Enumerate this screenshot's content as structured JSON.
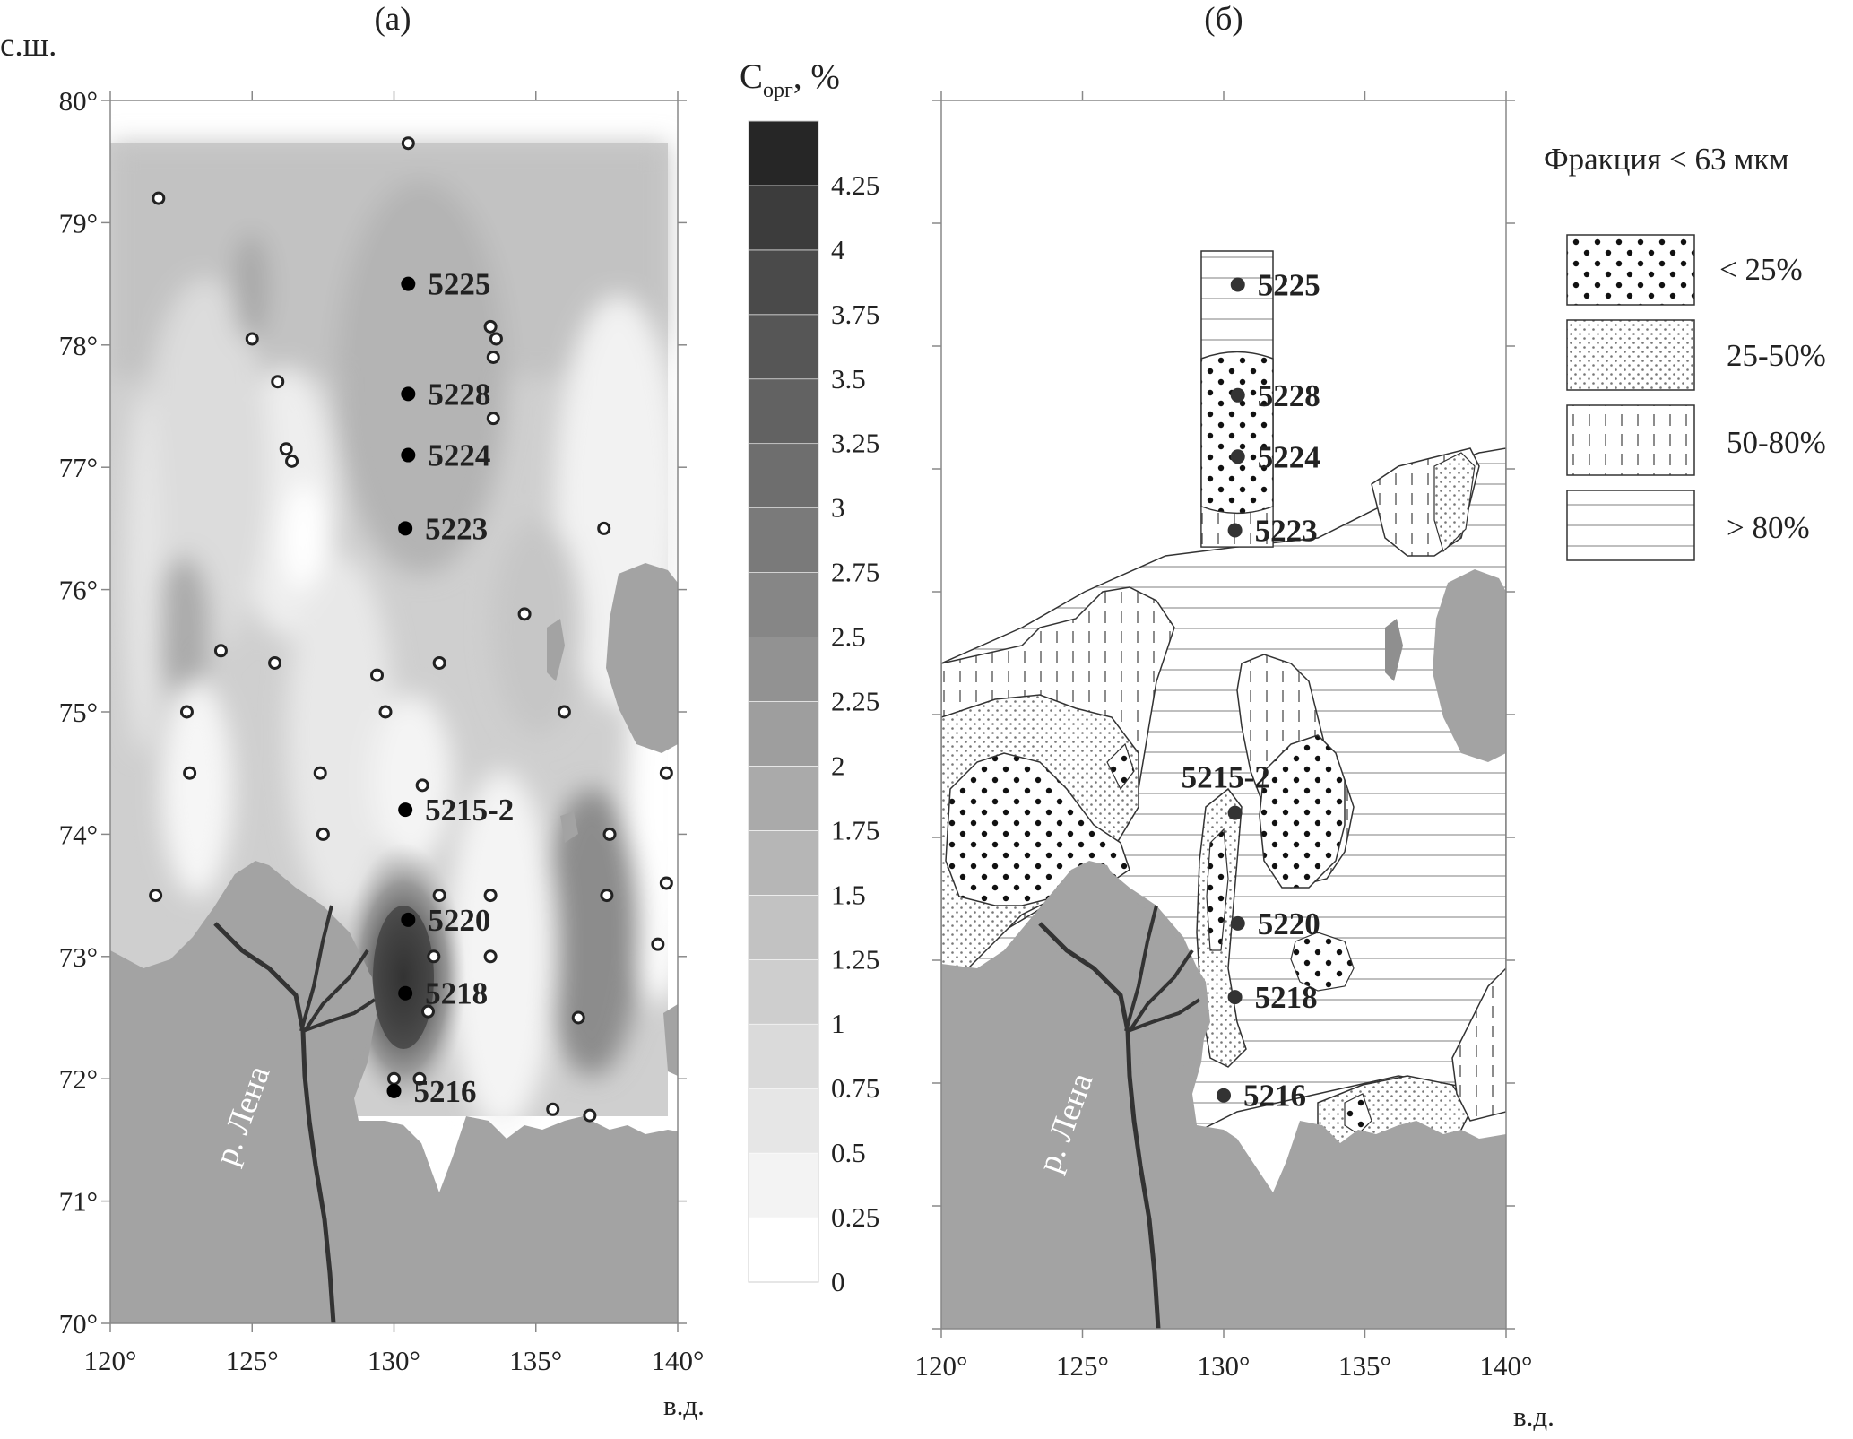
{
  "panels": [
    {
      "label": "(а)"
    },
    {
      "label": "(б)"
    }
  ],
  "axis": {
    "lat_title": "с.ш.",
    "lon_title": "в.д.",
    "lat_ticks": [
      "70°",
      "71°",
      "72°",
      "73°",
      "74°",
      "75°",
      "76°",
      "77°",
      "78°",
      "79°",
      "80°"
    ],
    "lon_ticks": [
      "120°",
      "125°",
      "130°",
      "135°",
      "140°"
    ]
  },
  "river_label": "р. Лена",
  "colorbar": {
    "title_main": "С",
    "title_sub": "орг",
    "title_unit": ", %",
    "levels": [
      "0",
      "0.25",
      "0.5",
      "0.75",
      "1",
      "1.25",
      "1.5",
      "1.75",
      "2",
      "2.25",
      "2.5",
      "2.75",
      "3",
      "3.25",
      "3.5",
      "3.75",
      "4",
      "4.25"
    ],
    "colors": [
      "#ffffff",
      "#f3f3f3",
      "#e6e6e6",
      "#dadada",
      "#cecece",
      "#c2c2c2",
      "#b6b6b6",
      "#aaaaaa",
      "#9e9e9e",
      "#929292",
      "#868686",
      "#7a7a7a",
      "#6e6e6e",
      "#626262",
      "#565656",
      "#4a4a4a",
      "#3c3c3c",
      "#262626"
    ]
  },
  "legend": {
    "title": "Фракция < 63 мкм",
    "items": [
      {
        "label": "< 25%"
      },
      {
        "label": "25-50%"
      },
      {
        "label": "50-80%"
      },
      {
        "label": "> 80%"
      }
    ]
  },
  "stations": [
    {
      "id": "5225",
      "lon": 130.5,
      "lat": 78.5
    },
    {
      "id": "5228",
      "lon": 130.5,
      "lat": 77.6
    },
    {
      "id": "5224",
      "lon": 130.5,
      "lat": 77.1
    },
    {
      "id": "5223",
      "lon": 130.4,
      "lat": 76.5
    },
    {
      "id": "5215-2",
      "lon": 130.4,
      "lat": 74.2
    },
    {
      "id": "5220",
      "lon": 130.5,
      "lat": 73.3
    },
    {
      "id": "5218",
      "lon": 130.4,
      "lat": 72.7
    },
    {
      "id": "5216",
      "lon": 130.0,
      "lat": 71.9
    }
  ],
  "open_points": [
    {
      "lon": 130.5,
      "lat": 79.65
    },
    {
      "lon": 121.7,
      "lat": 79.2
    },
    {
      "lon": 125.0,
      "lat": 78.05
    },
    {
      "lon": 133.4,
      "lat": 78.15
    },
    {
      "lon": 133.6,
      "lat": 78.05
    },
    {
      "lon": 133.5,
      "lat": 77.9
    },
    {
      "lon": 125.9,
      "lat": 77.7
    },
    {
      "lon": 133.5,
      "lat": 77.4
    },
    {
      "lon": 126.2,
      "lat": 77.15
    },
    {
      "lon": 126.4,
      "lat": 77.05
    },
    {
      "lon": 137.4,
      "lat": 76.5
    },
    {
      "lon": 134.6,
      "lat": 75.8
    },
    {
      "lon": 123.9,
      "lat": 75.5
    },
    {
      "lon": 125.8,
      "lat": 75.4
    },
    {
      "lon": 131.6,
      "lat": 75.4
    },
    {
      "lon": 129.4,
      "lat": 75.3
    },
    {
      "lon": 122.7,
      "lat": 75.0
    },
    {
      "lon": 129.7,
      "lat": 75.0
    },
    {
      "lon": 136.0,
      "lat": 75.0
    },
    {
      "lon": 122.8,
      "lat": 74.5
    },
    {
      "lon": 127.4,
      "lat": 74.5
    },
    {
      "lon": 139.6,
      "lat": 74.5
    },
    {
      "lon": 131.0,
      "lat": 74.4
    },
    {
      "lon": 127.5,
      "lat": 74.0
    },
    {
      "lon": 137.6,
      "lat": 74.0
    },
    {
      "lon": 121.6,
      "lat": 73.5
    },
    {
      "lon": 131.6,
      "lat": 73.5
    },
    {
      "lon": 133.4,
      "lat": 73.5
    },
    {
      "lon": 137.5,
      "lat": 73.5
    },
    {
      "lon": 139.6,
      "lat": 73.6
    },
    {
      "lon": 131.4,
      "lat": 73.0
    },
    {
      "lon": 133.4,
      "lat": 73.0
    },
    {
      "lon": 139.3,
      "lat": 73.1
    },
    {
      "lon": 131.2,
      "lat": 72.55
    },
    {
      "lon": 136.5,
      "lat": 72.5
    },
    {
      "lon": 130.0,
      "lat": 72.0
    },
    {
      "lon": 130.9,
      "lat": 72.0
    },
    {
      "lon": 135.6,
      "lat": 71.75
    },
    {
      "lon": 136.9,
      "lat": 71.7
    }
  ]
}
